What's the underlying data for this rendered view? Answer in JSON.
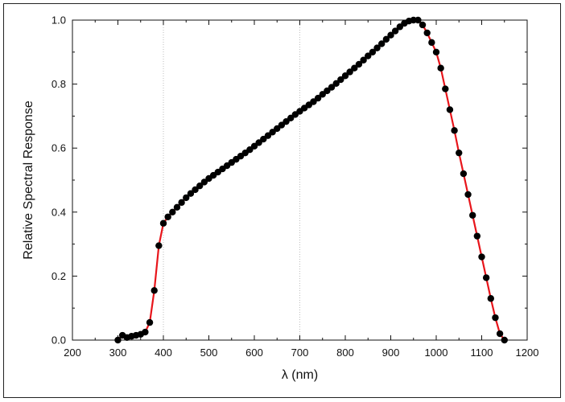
{
  "chart_data": {
    "type": "line",
    "title": "",
    "xlabel": "λ (nm)",
    "ylabel": "Relative Spectral Response",
    "xlim": [
      200,
      1200
    ],
    "ylim": [
      0,
      1.0
    ],
    "xticks": [
      "200",
      "300",
      "400",
      "500",
      "600",
      "700",
      "800",
      "900",
      "1000",
      "1100",
      "1200"
    ],
    "yticks": [
      "0.0",
      "0.2",
      "0.4",
      "0.6",
      "0.8",
      "1.0"
    ],
    "grid_x": [
      400,
      700
    ],
    "line_color": "#e8151b",
    "marker_color": "#000000",
    "series": [
      {
        "x": [
          300,
          310,
          320,
          330,
          340,
          350,
          360,
          370,
          380,
          390,
          400,
          410,
          420,
          430,
          440,
          450,
          460,
          470,
          480,
          490,
          500,
          510,
          520,
          530,
          540,
          550,
          560,
          570,
          580,
          590,
          600,
          610,
          620,
          630,
          640,
          650,
          660,
          670,
          680,
          690,
          700,
          710,
          720,
          730,
          740,
          750,
          760,
          770,
          780,
          790,
          800,
          810,
          820,
          830,
          840,
          850,
          860,
          870,
          880,
          890,
          900,
          910,
          920,
          930,
          940,
          950,
          960,
          970,
          980,
          990,
          1000,
          1010,
          1020,
          1030,
          1040,
          1050,
          1060,
          1070,
          1080,
          1090,
          1100,
          1110,
          1120,
          1130,
          1140,
          1150
        ],
        "y": [
          0.0,
          0.015,
          0.008,
          0.012,
          0.015,
          0.018,
          0.025,
          0.055,
          0.155,
          0.295,
          0.365,
          0.385,
          0.4,
          0.415,
          0.43,
          0.445,
          0.458,
          0.47,
          0.482,
          0.494,
          0.505,
          0.515,
          0.525,
          0.535,
          0.545,
          0.555,
          0.565,
          0.575,
          0.585,
          0.595,
          0.606,
          0.617,
          0.628,
          0.639,
          0.65,
          0.661,
          0.672,
          0.683,
          0.694,
          0.705,
          0.715,
          0.725,
          0.735,
          0.745,
          0.756,
          0.768,
          0.779,
          0.79,
          0.802,
          0.814,
          0.826,
          0.838,
          0.85,
          0.862,
          0.875,
          0.888,
          0.9,
          0.913,
          0.926,
          0.94,
          0.953,
          0.966,
          0.979,
          0.99,
          0.997,
          1.0,
          1.0,
          0.985,
          0.96,
          0.93,
          0.9,
          0.85,
          0.785,
          0.72,
          0.655,
          0.585,
          0.52,
          0.455,
          0.39,
          0.325,
          0.26,
          0.195,
          0.13,
          0.07,
          0.02,
          0.0
        ]
      }
    ]
  }
}
